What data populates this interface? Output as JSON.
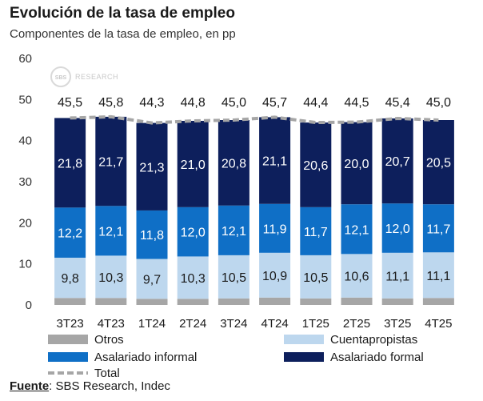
{
  "title": "Evolución de la tasa de empleo",
  "subtitle": "Componentes de la tasa de empleo, en pp",
  "source_label": "Fuente",
  "source_text": ": SBS Research, Indec",
  "watermark": {
    "brand": "SBS",
    "text": "RESEARCH"
  },
  "colors": {
    "otros": "#a6a6a6",
    "cuentapropistas": "#bdd7ee",
    "informal": "#0f6fc6",
    "formal": "#0d1f5c",
    "total": "#a6a6a6",
    "label_dark": "#1a1a1a",
    "label_light": "#ffffff"
  },
  "chart_data": {
    "type": "bar",
    "stacked": true,
    "categories": [
      "3T23",
      "4T23",
      "1T24",
      "2T24",
      "3T24",
      "4T24",
      "1T25",
      "2T25",
      "3T25",
      "4T25"
    ],
    "series": [
      {
        "key": "otros",
        "name": "Otros",
        "values": [
          1.7,
          1.7,
          1.5,
          1.5,
          1.6,
          1.8,
          1.6,
          1.8,
          1.6,
          1.7
        ],
        "labels": [
          "",
          "",
          "",
          "",
          "",
          "",
          "",
          "",
          "",
          ""
        ]
      },
      {
        "key": "cuentapropistas",
        "name": "Cuentapropistas",
        "values": [
          9.8,
          10.3,
          9.7,
          10.3,
          10.5,
          10.9,
          10.5,
          10.6,
          11.1,
          11.1
        ],
        "labels": [
          "9,8",
          "10,3",
          "9,7",
          "10,3",
          "10,5",
          "10,9",
          "10,5",
          "10,6",
          "11,1",
          "11,1"
        ]
      },
      {
        "key": "informal",
        "name": "Asalariado informal",
        "values": [
          12.2,
          12.1,
          11.8,
          12.0,
          12.1,
          11.9,
          11.7,
          12.1,
          12.0,
          11.7
        ],
        "labels": [
          "12,2",
          "12,1",
          "11,8",
          "12,0",
          "12,1",
          "11,9",
          "11,7",
          "12,1",
          "12,0",
          "11,7"
        ]
      },
      {
        "key": "formal",
        "name": "Asalariado formal",
        "values": [
          21.8,
          21.7,
          21.3,
          21.0,
          20.8,
          21.1,
          20.6,
          20.0,
          20.7,
          20.5
        ],
        "labels": [
          "21,8",
          "21,7",
          "21,3",
          "21,0",
          "20,8",
          "21,1",
          "20,6",
          "20,0",
          "20,7",
          "20,5"
        ]
      }
    ],
    "total": {
      "name": "Total",
      "values": [
        45.5,
        45.8,
        44.3,
        44.8,
        45.0,
        45.7,
        44.4,
        44.5,
        45.4,
        45.0
      ],
      "labels": [
        "45,5",
        "45,8",
        "44,3",
        "44,8",
        "45,0",
        "45,7",
        "44,4",
        "44,5",
        "45,4",
        "45,0"
      ]
    },
    "ylim": [
      0,
      60
    ],
    "yticks": [
      "0",
      "10",
      "20",
      "30",
      "40",
      "50",
      "60"
    ],
    "legend_position": "bottom",
    "xlabel": "",
    "ylabel": ""
  }
}
